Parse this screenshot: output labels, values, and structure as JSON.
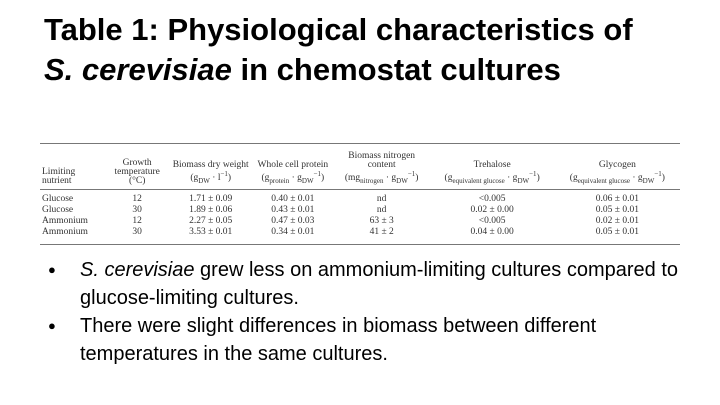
{
  "title": [
    {
      "text": "Table 1: Physiological characteristics of "
    },
    {
      "text": "S. cerevisiae",
      "italic": true
    },
    {
      "text": " in chemostat cultures"
    }
  ],
  "table": {
    "columns": [
      {
        "label": "Limiting nutrient",
        "unit": []
      },
      {
        "label": "Growth temperature",
        "unit": [
          {
            "text": "(°C)"
          }
        ]
      },
      {
        "label": "Biomass dry weight",
        "unit": [
          {
            "text": "(g"
          },
          {
            "text": "DW",
            "pos": "sub"
          },
          {
            "text": " · l"
          },
          {
            "text": "−1",
            "pos": "sup"
          },
          {
            "text": ")"
          }
        ]
      },
      {
        "label": "Whole cell protein",
        "unit": [
          {
            "text": "(g"
          },
          {
            "text": "protein",
            "pos": "sub"
          },
          {
            "text": " · g"
          },
          {
            "text": "DW",
            "pos": "sub"
          },
          {
            "text": "−1",
            "pos": "sup"
          },
          {
            "text": ")"
          }
        ]
      },
      {
        "label": "Biomass nitrogen content",
        "unit": [
          {
            "text": "(mg"
          },
          {
            "text": "nitrogen",
            "pos": "sub"
          },
          {
            "text": " · g"
          },
          {
            "text": "DW",
            "pos": "sub"
          },
          {
            "text": "−1",
            "pos": "sup"
          },
          {
            "text": ")"
          }
        ]
      },
      {
        "label": "Trehalose",
        "unit": [
          {
            "text": "(g"
          },
          {
            "text": "equivalent glucose",
            "pos": "sub"
          },
          {
            "text": " · g"
          },
          {
            "text": "DW",
            "pos": "sub"
          },
          {
            "text": "−1",
            "pos": "sup"
          },
          {
            "text": ")"
          }
        ]
      },
      {
        "label": "Glycogen",
        "unit": [
          {
            "text": "(g"
          },
          {
            "text": "equivalent glucose",
            "pos": "sub"
          },
          {
            "text": " · g"
          },
          {
            "text": "DW",
            "pos": "sub"
          },
          {
            "text": "−1",
            "pos": "sup"
          },
          {
            "text": ")"
          }
        ]
      }
    ],
    "rows": [
      [
        "Glucose",
        "12",
        "1.71 ± 0.09",
        "0.40 ± 0.01",
        "nd",
        "<0.005",
        "0.06 ± 0.01"
      ],
      [
        "Glucose",
        "30",
        "1.89 ± 0.06",
        "0.43 ± 0.01",
        "nd",
        "0.02 ± 0.00",
        "0.05 ± 0.01"
      ],
      [
        "Ammonium",
        "12",
        "2.27 ± 0.05",
        "0.47 ± 0.03",
        "63 ± 3",
        "<0.005",
        "0.02 ± 0.01"
      ],
      [
        "Ammonium",
        "30",
        "3.53 ± 0.01",
        "0.34 ± 0.01",
        "41 ± 2",
        "0.04 ± 0.00",
        "0.05 ± 0.01"
      ]
    ]
  },
  "bullets": [
    [
      {
        "text": "S. cerevisiae",
        "italic": true
      },
      {
        "text": " grew less on ammonium-limiting cultures compared to glucose-limiting cultures."
      }
    ],
    [
      {
        "text": "There were slight differences in biomass between different temperatures in the same cultures."
      }
    ]
  ]
}
